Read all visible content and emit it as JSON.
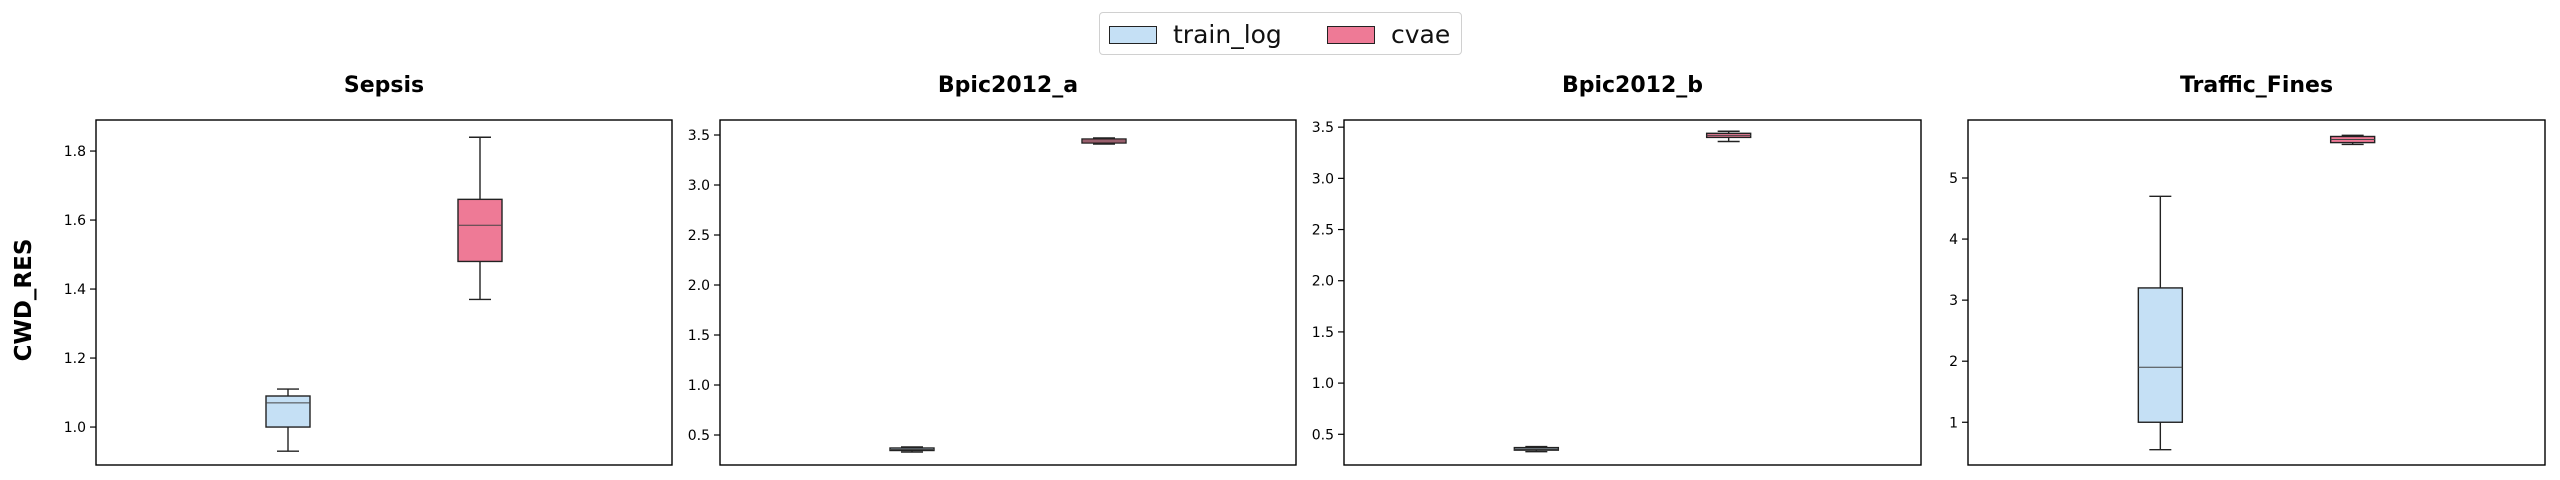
{
  "legend": {
    "items": [
      {
        "label": "train_log",
        "color": "#c5e0f5"
      },
      {
        "label": "cvae",
        "color": "#ee7a96"
      }
    ]
  },
  "ylabel": "CWD_RES",
  "chart_data": [
    {
      "type": "box",
      "title": "Sepsis",
      "ylim": [
        0.89,
        1.89
      ],
      "yticks": [
        1.0,
        1.2,
        1.4,
        1.6,
        1.8
      ],
      "yticklabels": [
        "1.0",
        "1.2",
        "1.4",
        "1.6",
        "1.8"
      ],
      "boxes": [
        {
          "series": "train_log",
          "whislo": 0.93,
          "q1": 1.0,
          "med": 1.07,
          "q3": 1.09,
          "whishi": 1.11
        },
        {
          "series": "cvae",
          "whislo": 1.37,
          "q1": 1.48,
          "med": 1.585,
          "q3": 1.66,
          "whishi": 1.84
        }
      ]
    },
    {
      "type": "box",
      "title": "Bpic2012_a",
      "ylim": [
        0.2,
        3.65
      ],
      "yticks": [
        0.5,
        1.0,
        1.5,
        2.0,
        2.5,
        3.0,
        3.5
      ],
      "yticklabels": [
        "0.5",
        "1.0",
        "1.5",
        "2.0",
        "2.5",
        "3.0",
        "3.5"
      ],
      "boxes": [
        {
          "series": "train_log",
          "whislo": 0.33,
          "q1": 0.345,
          "med": 0.355,
          "q3": 0.37,
          "whishi": 0.38
        },
        {
          "series": "cvae",
          "whislo": 3.41,
          "q1": 3.42,
          "med": 3.44,
          "q3": 3.46,
          "whishi": 3.47
        }
      ]
    },
    {
      "type": "box",
      "title": "Bpic2012_b",
      "ylim": [
        0.2,
        3.57
      ],
      "yticks": [
        0.5,
        1.0,
        1.5,
        2.0,
        2.5,
        3.0,
        3.5
      ],
      "yticklabels": [
        "0.5",
        "1.0",
        "1.5",
        "2.0",
        "2.5",
        "3.0",
        "3.5"
      ],
      "boxes": [
        {
          "series": "train_log",
          "whislo": 0.33,
          "q1": 0.345,
          "med": 0.355,
          "q3": 0.37,
          "whishi": 0.38
        },
        {
          "series": "cvae",
          "whislo": 3.36,
          "q1": 3.4,
          "med": 3.42,
          "q3": 3.44,
          "whishi": 3.46
        }
      ]
    },
    {
      "type": "box",
      "title": "Traffic_Fines",
      "ylim": [
        0.3,
        5.95
      ],
      "yticks": [
        1,
        2,
        3,
        4,
        5
      ],
      "yticklabels": [
        "1",
        "2",
        "3",
        "4",
        "5"
      ],
      "boxes": [
        {
          "series": "train_log",
          "whislo": 0.55,
          "q1": 1.0,
          "med": 1.9,
          "q3": 3.2,
          "whishi": 4.7
        },
        {
          "series": "cvae",
          "whislo": 5.55,
          "q1": 5.58,
          "med": 5.63,
          "q3": 5.68,
          "whishi": 5.7
        }
      ]
    }
  ]
}
